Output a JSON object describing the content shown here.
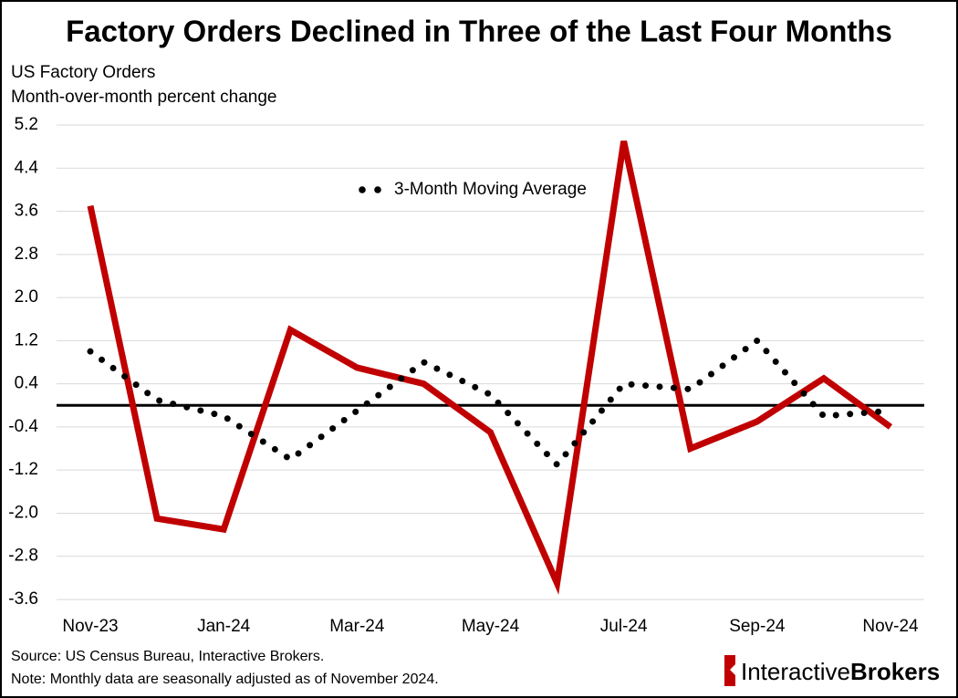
{
  "chart_data": {
    "type": "line",
    "title": "Factory Orders Declined in Three of the Last Four Months",
    "subtitle": [
      "US Factory Orders",
      "Month-over-month percent change"
    ],
    "categories": [
      "Nov-23",
      null,
      "Jan-24",
      null,
      "Mar-24",
      null,
      "May-24",
      null,
      "Jul-24",
      null,
      "Sep-24",
      null,
      "Nov-24"
    ],
    "series": [
      {
        "color": "#c00000",
        "style": "solid",
        "values": [
          3.7,
          -2.1,
          -2.3,
          1.4,
          0.7,
          0.4,
          -0.5,
          -3.3,
          4.9,
          -0.8,
          -0.3,
          0.5,
          -0.4
        ]
      },
      {
        "name": "3-Month Moving Average",
        "color": "#000000",
        "style": "dotted",
        "values": [
          1.0,
          0.1,
          -0.2,
          -1.0,
          -0.1,
          0.8,
          0.2,
          -1.1,
          0.4,
          0.3,
          1.2,
          -0.2,
          -0.1
        ]
      }
    ],
    "ylim": [
      -3.6,
      5.2
    ],
    "yticks": [
      5.2,
      4.4,
      3.6,
      2.8,
      {
        "value": 2,
        "label": "2.0"
      },
      1.2,
      0.4,
      -0.4,
      -1.2,
      {
        "value": -2,
        "label": "-2.0"
      },
      -2.8,
      -3.6
    ],
    "grid": true,
    "zero_line": true,
    "notes": {
      "source": "Source: US Census Bureau, Interactive Brokers.",
      "note": "Note: Monthly data are seasonally adjusted as of November 2024."
    },
    "brand": {
      "first": "Interactive",
      "second": "Brokers"
    }
  }
}
